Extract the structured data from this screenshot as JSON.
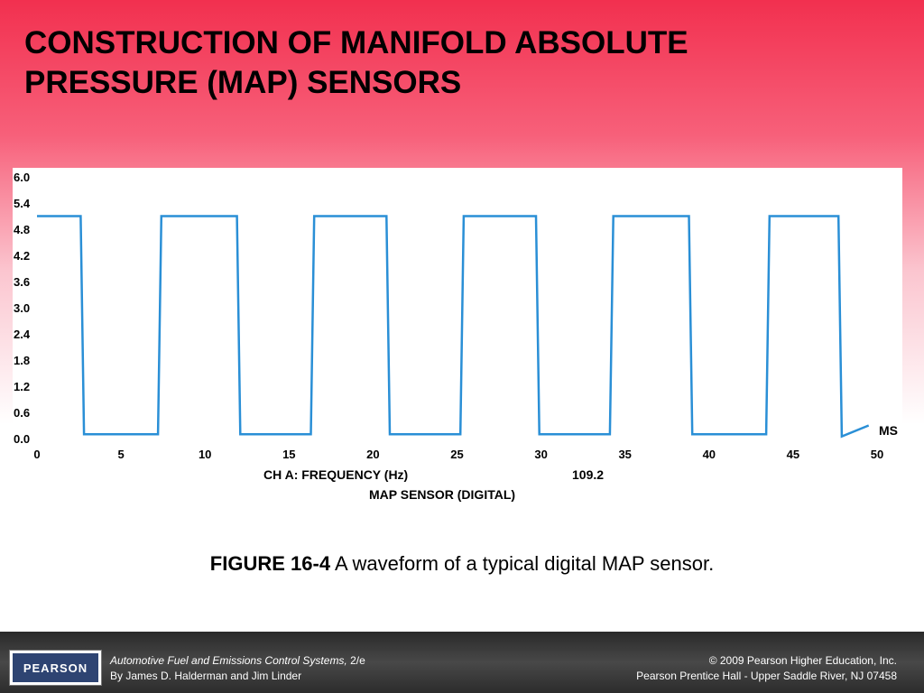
{
  "slide": {
    "title_line1": "CONSTRUCTION OF MANIFOLD ABSOLUTE",
    "title_line2": "PRESSURE (MAP) SENSORS"
  },
  "chart_data": {
    "type": "line",
    "y_ticks": [
      "6.0",
      "5.4",
      "4.8",
      "4.2",
      "3.6",
      "3.0",
      "2.4",
      "1.8",
      "1.2",
      "0.6",
      "0.0"
    ],
    "x_ticks": [
      "0",
      "5",
      "10",
      "15",
      "20",
      "25",
      "30",
      "35",
      "40",
      "45",
      "50"
    ],
    "xlim": [
      0,
      50
    ],
    "ylim": [
      0,
      6
    ],
    "x_unit": "MS",
    "readout_label": "CH A: FREQUENCY (Hz)",
    "readout_value": "109.2",
    "trace_label": "MAP SENSOR (DIGITAL)",
    "line_color": "#2a8fd6",
    "series": [
      {
        "points": [
          [
            0,
            5.1
          ],
          [
            2.6,
            5.1
          ],
          [
            2.8,
            0.1
          ],
          [
            7.2,
            0.1
          ],
          [
            7.4,
            5.1
          ],
          [
            11.9,
            5.1
          ],
          [
            12.1,
            0.1
          ],
          [
            16.3,
            0.1
          ],
          [
            16.5,
            5.1
          ],
          [
            20.8,
            5.1
          ],
          [
            21.0,
            0.1
          ],
          [
            25.2,
            0.1
          ],
          [
            25.4,
            5.1
          ],
          [
            29.7,
            5.1
          ],
          [
            29.9,
            0.1
          ],
          [
            34.1,
            0.1
          ],
          [
            34.3,
            5.1
          ],
          [
            38.8,
            5.1
          ],
          [
            39.0,
            0.1
          ],
          [
            43.4,
            0.1
          ],
          [
            43.6,
            5.1
          ],
          [
            47.7,
            5.1
          ],
          [
            47.9,
            0.05
          ],
          [
            49.5,
            0.3
          ]
        ]
      }
    ]
  },
  "caption": {
    "figure_label": "FIGURE 16-4",
    "text": " A waveform of a typical digital MAP sensor."
  },
  "footer": {
    "logo": "PEARSON",
    "book_title": "Automotive Fuel and Emissions Control Systems,",
    "edition": " 2/e",
    "authors": "By James D. Halderman and Jim Linder",
    "copyright": "© 2009 Pearson Higher Education, Inc.",
    "publisher": "Pearson Prentice Hall - Upper Saddle River, NJ 07458"
  }
}
